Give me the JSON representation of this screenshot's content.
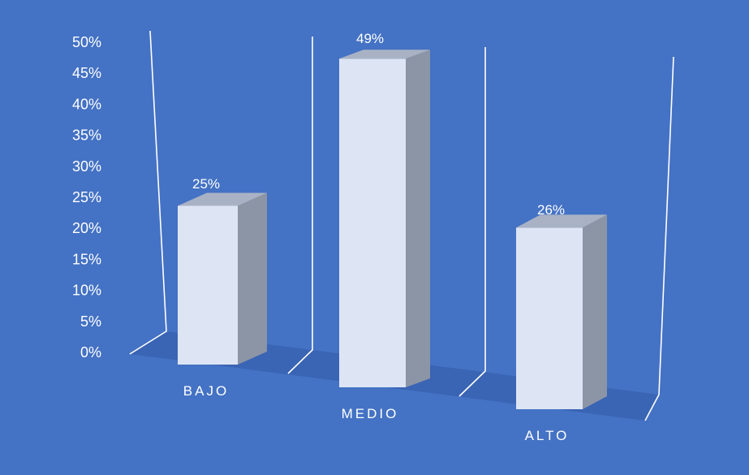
{
  "chart_data": {
    "type": "bar",
    "categories": [
      "BAJO",
      "MEDIO",
      "ALTO"
    ],
    "values": [
      25,
      49,
      26
    ],
    "data_labels": [
      "25%",
      "49%",
      "26%"
    ],
    "yticks": [
      "0%",
      "5%",
      "10%",
      "15%",
      "20%",
      "25%",
      "30%",
      "35%",
      "40%",
      "45%",
      "50%"
    ],
    "ylim": [
      0,
      50
    ],
    "title": "",
    "xlabel": "",
    "ylabel": "",
    "grid": false,
    "legend": "none",
    "style": "3d-column",
    "colors": {
      "background": "#4472C4",
      "bar_front": "#DDE4F4",
      "bar_side": "#8C95A6",
      "bar_top": "#A9B2C4",
      "floor": "#3A64B4",
      "wall_line": "#FFFFFF",
      "text": "#FFFFFF"
    }
  }
}
